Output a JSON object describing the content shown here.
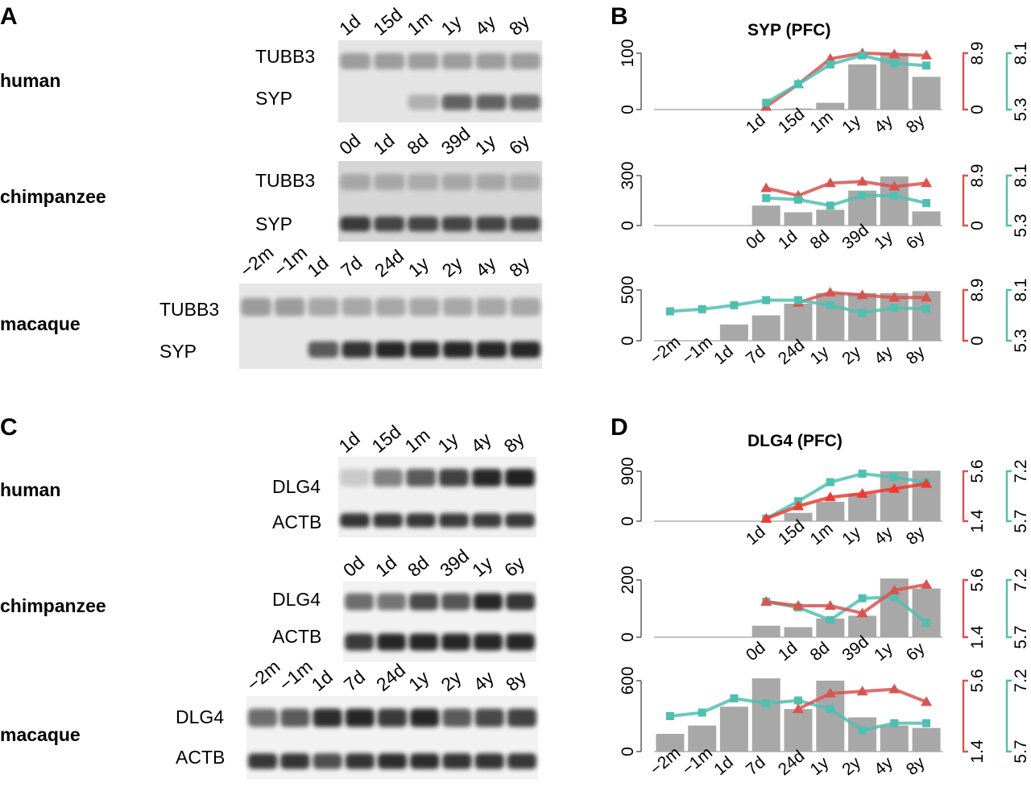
{
  "panels": {
    "A": "A",
    "B": "B",
    "C": "C",
    "D": "D"
  },
  "blots": [
    {
      "key": "syp_human",
      "species": "human",
      "lanes": [
        "1d",
        "15d",
        "1m",
        "1y",
        "4y",
        "8y"
      ],
      "proteins": [
        "TUBB3",
        "SYP"
      ],
      "band_intensity": [
        [
          0.35,
          0.35,
          0.35,
          0.35,
          0.35,
          0.35
        ],
        [
          0.0,
          0.0,
          0.25,
          0.65,
          0.65,
          0.6
        ]
      ]
    },
    {
      "key": "syp_chimp",
      "species": "chimpanzee",
      "lanes": [
        "0d",
        "1d",
        "8d",
        "39d",
        "1y",
        "6y"
      ],
      "proteins": [
        "TUBB3",
        "SYP"
      ],
      "band_intensity": [
        [
          0.3,
          0.3,
          0.28,
          0.3,
          0.3,
          0.28
        ],
        [
          0.85,
          0.8,
          0.8,
          0.8,
          0.8,
          0.8
        ]
      ]
    },
    {
      "key": "syp_macaque",
      "species": "macaque",
      "lanes": [
        "−2m",
        "−1m",
        "1d",
        "7d",
        "24d",
        "1y",
        "2y",
        "4y",
        "8y"
      ],
      "proteins": [
        "TUBB3",
        "SYP"
      ],
      "band_intensity": [
        [
          0.35,
          0.35,
          0.3,
          0.3,
          0.3,
          0.3,
          0.3,
          0.3,
          0.3
        ],
        [
          0.0,
          0.0,
          0.7,
          0.9,
          0.95,
          0.95,
          0.95,
          0.95,
          0.95
        ]
      ]
    },
    {
      "key": "dlg_human",
      "species": "human",
      "lanes": [
        "1d",
        "15d",
        "1m",
        "1y",
        "4y",
        "8y"
      ],
      "proteins": [
        "DLG4",
        "ACTB"
      ],
      "band_intensity": [
        [
          0.12,
          0.5,
          0.7,
          0.82,
          0.95,
          1.0
        ],
        [
          0.9,
          0.88,
          0.88,
          0.85,
          0.85,
          0.88
        ]
      ]
    },
    {
      "key": "dlg_chimp",
      "species": "chimpanzee",
      "lanes": [
        "0d",
        "1d",
        "8d",
        "39d",
        "1y",
        "6y"
      ],
      "proteins": [
        "DLG4",
        "ACTB"
      ],
      "band_intensity": [
        [
          0.6,
          0.55,
          0.78,
          0.72,
          0.95,
          0.9
        ],
        [
          0.85,
          0.95,
          0.95,
          0.95,
          0.95,
          0.95
        ]
      ]
    },
    {
      "key": "dlg_macaque",
      "species": "macaque",
      "lanes": [
        "−2m",
        "−1m",
        "1d",
        "7d",
        "24d",
        "1y",
        "2y",
        "4y",
        "8y"
      ],
      "proteins": [
        "DLG4",
        "ACTB"
      ],
      "band_intensity": [
        [
          0.6,
          0.7,
          0.92,
          0.95,
          0.85,
          0.95,
          0.7,
          0.78,
          0.82
        ],
        [
          0.88,
          0.9,
          0.75,
          0.9,
          0.92,
          0.92,
          0.9,
          0.9,
          0.88
        ]
      ]
    }
  ],
  "chart_data": [
    {
      "type": "bar",
      "panel": "B",
      "title": "SYP (PFC)",
      "species": "human",
      "categories": [
        "1d",
        "15d",
        "1m",
        "1y",
        "4y",
        "8y"
      ],
      "ylim": [
        0,
        100
      ],
      "yticks": [
        "0",
        "100"
      ],
      "values": [
        0,
        2,
        12,
        80,
        100,
        58
      ],
      "series": [
        {
          "color": "#d9534f",
          "axis": "red",
          "values": [
            0.05,
            0.45,
            0.9,
            1.0,
            0.98,
            0.96
          ]
        },
        {
          "color": "#4fbfb0",
          "axis": "teal",
          "values": [
            0.12,
            0.45,
            0.8,
            0.96,
            0.82,
            0.78
          ]
        }
      ],
      "red_axis": {
        "ticks": [
          "0",
          "8.9"
        ]
      },
      "teal_axis": {
        "ticks": [
          "5.3",
          "8.1"
        ]
      }
    },
    {
      "type": "bar",
      "panel": "B",
      "species": "chimpanzee",
      "categories": [
        "0d",
        "1d",
        "8d",
        "39d",
        "1y",
        "6y"
      ],
      "ylim": [
        0,
        300
      ],
      "yticks": [
        "0",
        "300"
      ],
      "values": [
        120,
        80,
        95,
        210,
        295,
        85
      ],
      "series": [
        {
          "color": "#d9534f",
          "axis": "red",
          "values": [
            0.75,
            0.6,
            0.85,
            0.88,
            0.78,
            0.85
          ]
        },
        {
          "color": "#4fbfb0",
          "axis": "teal",
          "values": [
            0.55,
            0.52,
            0.4,
            0.6,
            0.6,
            0.45
          ]
        }
      ],
      "red_axis": {
        "ticks": [
          "0",
          "8.9"
        ]
      },
      "teal_axis": {
        "ticks": [
          "5.3",
          "8.1"
        ]
      }
    },
    {
      "type": "bar",
      "panel": "B",
      "species": "macaque",
      "categories": [
        "−2m",
        "−1m",
        "1d",
        "7d",
        "24d",
        "1y",
        "2y",
        "4y",
        "8y"
      ],
      "ylim": [
        0,
        500
      ],
      "yticks": [
        "0",
        "500"
      ],
      "values": [
        0,
        0,
        160,
        250,
        365,
        470,
        470,
        470,
        490
      ],
      "series": [
        {
          "color": "#d9534f",
          "axis": "red",
          "values": [
            null,
            null,
            null,
            null,
            0.75,
            0.95,
            0.9,
            0.85,
            0.85
          ]
        },
        {
          "color": "#4fbfb0",
          "axis": "teal",
          "values": [
            0.58,
            0.62,
            0.7,
            0.8,
            0.8,
            0.7,
            0.55,
            0.65,
            0.63
          ]
        }
      ],
      "red_axis": {
        "ticks": [
          "0",
          "8.9"
        ]
      },
      "teal_axis": {
        "ticks": [
          "5.3",
          "8.1"
        ]
      }
    },
    {
      "type": "bar",
      "panel": "D",
      "title": "DLG4 (PFC)",
      "species": "human",
      "categories": [
        "1d",
        "15d",
        "1m",
        "1y",
        "4y",
        "8y"
      ],
      "ylim": [
        0,
        900
      ],
      "yticks": [
        "0",
        "900"
      ],
      "values": [
        0,
        150,
        350,
        500,
        900,
        910
      ],
      "series": [
        {
          "color": "#4fbfb0",
          "axis": "teal",
          "values": [
            0.05,
            0.4,
            0.78,
            0.95,
            0.88,
            0.78
          ]
        },
        {
          "color": "#f03a2e",
          "axis": "red",
          "values": [
            0.05,
            0.3,
            0.48,
            0.55,
            0.65,
            0.75
          ]
        }
      ],
      "red_axis": {
        "ticks": [
          "1.4",
          "5.6"
        ]
      },
      "teal_axis": {
        "ticks": [
          "5.7",
          "7.2"
        ]
      }
    },
    {
      "type": "bar",
      "panel": "D",
      "species": "chimpanzee",
      "categories": [
        "0d",
        "1d",
        "8d",
        "39d",
        "1y",
        "6y"
      ],
      "ylim": [
        0,
        200
      ],
      "yticks": [
        "0",
        "200"
      ],
      "values": [
        40,
        35,
        65,
        75,
        205,
        170
      ],
      "series": [
        {
          "color": "#4fbfb0",
          "axis": "teal",
          "values": [
            0.62,
            0.52,
            0.3,
            0.68,
            0.7,
            0.25
          ]
        },
        {
          "color": "#d9534f",
          "axis": "red",
          "values": [
            0.62,
            0.55,
            0.55,
            0.42,
            0.82,
            0.92
          ]
        }
      ],
      "red_axis": {
        "ticks": [
          "1.4",
          "5.6"
        ]
      },
      "teal_axis": {
        "ticks": [
          "5.7",
          "7.2"
        ]
      }
    },
    {
      "type": "bar",
      "panel": "D",
      "species": "macaque",
      "categories": [
        "−2m",
        "−1m",
        "1d",
        "7d",
        "24d",
        "1y",
        "2y",
        "4y",
        "8y"
      ],
      "ylim": [
        0,
        600
      ],
      "yticks": [
        "0",
        "600"
      ],
      "values": [
        150,
        220,
        380,
        620,
        360,
        600,
        290,
        220,
        200
      ],
      "series": [
        {
          "color": "#4fbfb0",
          "axis": "teal",
          "values": [
            0.5,
            0.55,
            0.75,
            0.68,
            0.72,
            0.6,
            0.3,
            0.4,
            0.4
          ]
        },
        {
          "color": "#d9534f",
          "axis": "red",
          "values": [
            null,
            null,
            null,
            null,
            0.6,
            0.82,
            0.85,
            0.88,
            0.7
          ]
        }
      ],
      "red_axis": {
        "ticks": [
          "1.4",
          "5.6"
        ]
      },
      "teal_axis": {
        "ticks": [
          "5.7",
          "7.2"
        ]
      }
    }
  ]
}
